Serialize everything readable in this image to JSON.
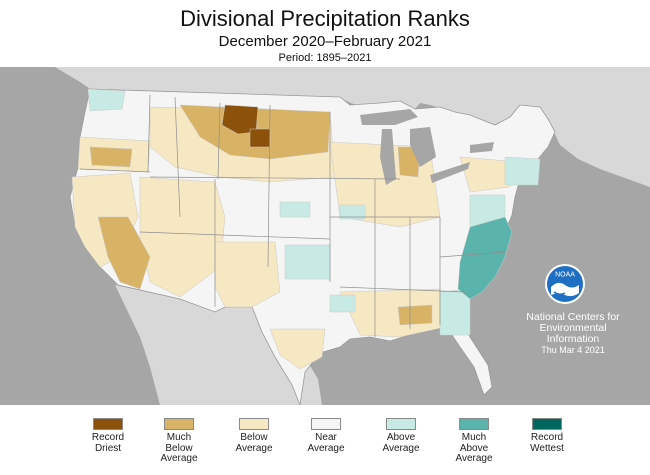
{
  "header": {
    "title": "Divisional Precipitation Ranks",
    "subtitle": "December 2020–February 2021",
    "period": "Period: 1895–2021"
  },
  "logo": {
    "text": "NOAA"
  },
  "credit": {
    "line1": "National Centers for",
    "line2": "Environmental",
    "line3": "Information",
    "date": "Thu Mar  4 2021"
  },
  "legend": [
    {
      "label": [
        "Record",
        "Driest"
      ],
      "color": "#8c510a"
    },
    {
      "label": [
        "Much",
        "Below",
        "Average"
      ],
      "color": "#d8b365"
    },
    {
      "label": [
        "Below",
        "Average"
      ],
      "color": "#f6e8c3"
    },
    {
      "label": [
        "Near",
        "Average"
      ],
      "color": "#f5f5f5"
    },
    {
      "label": [
        "Above",
        "Average"
      ],
      "color": "#c7eae5"
    },
    {
      "label": [
        "Much",
        "Above",
        "Average"
      ],
      "color": "#5ab4ac"
    },
    {
      "label": [
        "Record",
        "Wettest"
      ],
      "color": "#01665e"
    }
  ],
  "colors": {
    "land": "#f5f5f5",
    "ocean": "#a6a6a6",
    "foreign_land": "#d8d8d8",
    "border": "#c9c9c9",
    "lake": "#a6a6a6",
    "noaa_blue": "#1e6fc4"
  }
}
